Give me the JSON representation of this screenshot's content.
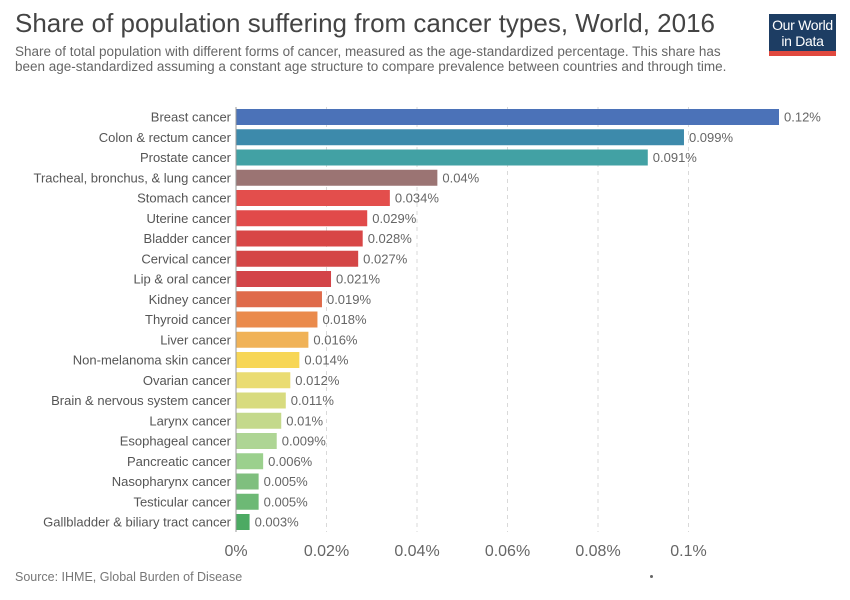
{
  "header": {
    "title": "Share of population suffering from cancer types, World, 2016",
    "subtitle": "Share of total population with different forms of cancer, measured as the age-standardized percentage. This share has been age-standardized assuming a constant age structure to compare prevalence between countries and through time.",
    "logo_line1": "Our World",
    "logo_line2": "in Data"
  },
  "footer": {
    "source": "Source: IHME, Global Burden of Disease"
  },
  "chart_data": {
    "type": "bar",
    "orientation": "horizontal",
    "title": "Share of population suffering from cancer types, World, 2016",
    "xlim": [
      0,
      0.12
    ],
    "grid": true,
    "xticks": [
      {
        "value": 0,
        "label": "0%"
      },
      {
        "value": 0.02,
        "label": "0.02%"
      },
      {
        "value": 0.04,
        "label": "0.04%"
      },
      {
        "value": 0.06,
        "label": "0.06%"
      },
      {
        "value": 0.08,
        "label": "0.08%"
      },
      {
        "value": 0.1,
        "label": "0.1%"
      }
    ],
    "bars": [
      {
        "category": "Breast cancer",
        "value": 0.12,
        "label": "0.12%",
        "color": "#4b72b8"
      },
      {
        "category": "Colon & rectum cancer",
        "value": 0.099,
        "label": "0.099%",
        "color": "#3d8aab"
      },
      {
        "category": "Prostate cancer",
        "value": 0.091,
        "label": "0.091%",
        "color": "#42a1a4"
      },
      {
        "category": "Tracheal, bronchus, & lung cancer",
        "value": 0.0445,
        "label": "0.04%",
        "color": "#9b7473"
      },
      {
        "category": "Stomach cancer",
        "value": 0.034,
        "label": "0.034%",
        "color": "#e34e4c"
      },
      {
        "category": "Uterine cancer",
        "value": 0.029,
        "label": "0.029%",
        "color": "#e14a4a"
      },
      {
        "category": "Bladder cancer",
        "value": 0.028,
        "label": "0.028%",
        "color": "#d84646"
      },
      {
        "category": "Cervical cancer",
        "value": 0.027,
        "label": "0.027%",
        "color": "#d44646"
      },
      {
        "category": "Lip & oral cancer",
        "value": 0.021,
        "label": "0.021%",
        "color": "#d34448"
      },
      {
        "category": "Kidney cancer",
        "value": 0.019,
        "label": "0.019%",
        "color": "#df6a4a"
      },
      {
        "category": "Thyroid cancer",
        "value": 0.018,
        "label": "0.018%",
        "color": "#ea8a4c"
      },
      {
        "category": "Liver cancer",
        "value": 0.016,
        "label": "0.016%",
        "color": "#f0b257"
      },
      {
        "category": "Non-melanoma skin cancer",
        "value": 0.014,
        "label": "0.014%",
        "color": "#f7d656"
      },
      {
        "category": "Ovarian cancer",
        "value": 0.012,
        "label": "0.012%",
        "color": "#eadc72"
      },
      {
        "category": "Brain & nervous system cancer",
        "value": 0.011,
        "label": "0.011%",
        "color": "#d8db7e"
      },
      {
        "category": "Larynx cancer",
        "value": 0.01,
        "label": "0.01%",
        "color": "#c4d98b"
      },
      {
        "category": "Esophageal cancer",
        "value": 0.009,
        "label": "0.009%",
        "color": "#aed594"
      },
      {
        "category": "Pancreatic cancer",
        "value": 0.006,
        "label": "0.006%",
        "color": "#9bd08d"
      },
      {
        "category": "Nasopharynx cancer",
        "value": 0.005,
        "label": "0.005%",
        "color": "#7fbf7e"
      },
      {
        "category": "Testicular cancer",
        "value": 0.005,
        "label": "0.005%",
        "color": "#6db975"
      },
      {
        "category": "Gallbladder & biliary tract cancer",
        "value": 0.003,
        "label": "0.003%",
        "color": "#4caa63"
      }
    ]
  }
}
